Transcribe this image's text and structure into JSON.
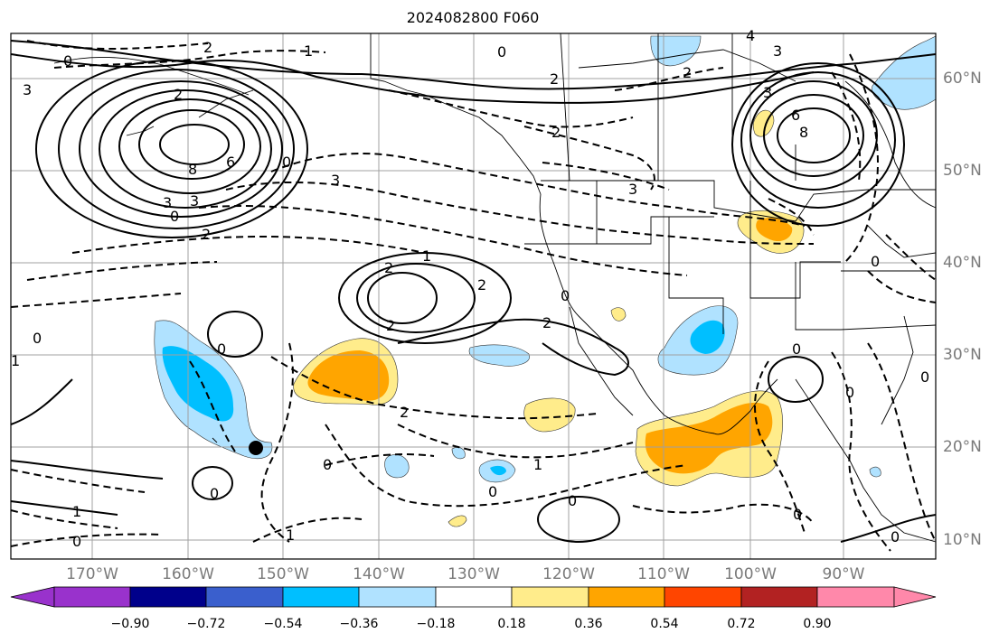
{
  "title": "2024082800 F060",
  "lon_labels": [
    "170°W",
    "160°W",
    "150°W",
    "140°W",
    "130°W",
    "120°W",
    "110°W",
    "100°W",
    "90°W"
  ],
  "lat_labels": [
    "60°N",
    "50°N",
    "40°N",
    "30°N",
    "20°N",
    "10°N"
  ],
  "colorbar": {
    "colors": [
      "#9932cc",
      "#00008b",
      "#3a5fcd",
      "#00bfff",
      "#b0e2ff",
      "#ffffff",
      "#ffec8b",
      "#ffa500",
      "#ff4500",
      "#b22222",
      "#ff88aa"
    ],
    "ticks": [
      "−0.90",
      "−0.72",
      "−0.54",
      "−0.36",
      "−0.18",
      "0.18",
      "0.36",
      "0.54",
      "0.72",
      "0.90"
    ]
  },
  "contour_labels": [
    "0",
    "2",
    "1",
    "0",
    "3",
    "4",
    "3",
    "2",
    "6",
    "8",
    "3",
    "2",
    "3",
    "2",
    "2",
    "0",
    "8",
    "6",
    "0",
    "3",
    "3",
    "3",
    "2",
    "2",
    "1",
    "2",
    "2",
    "0",
    "0",
    "2",
    "0",
    "0",
    "1",
    "0",
    "1",
    "0",
    "2",
    "0",
    "0",
    "0",
    "0",
    "1",
    "0",
    "0",
    "0",
    "1",
    "0"
  ]
}
